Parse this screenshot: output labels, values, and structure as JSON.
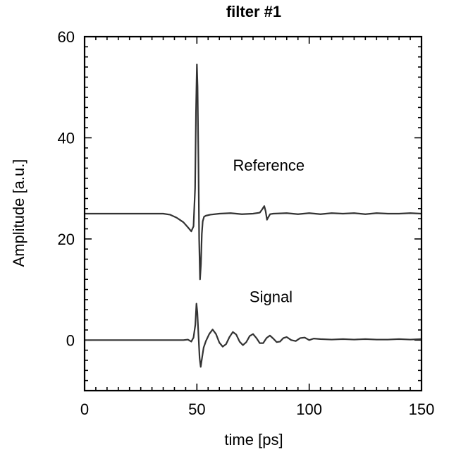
{
  "chart_data": {
    "type": "line",
    "title": "filter #1",
    "xlabel": "time [ps]",
    "ylabel": "Amplitude [a.u.]",
    "xlim": [
      0,
      150
    ],
    "ylim": [
      -10,
      60
    ],
    "xticks": [
      0,
      50,
      100,
      150
    ],
    "yticks": [
      0,
      20,
      40,
      60
    ],
    "x_minor_step": 5,
    "y_minor_step": 2,
    "grid": false,
    "legend": "none",
    "line_color": "#333333",
    "annotations": [
      {
        "text": "Reference",
        "x": 82,
        "y": 33.5
      },
      {
        "text": "Signal",
        "x": 83,
        "y": 7.5
      }
    ],
    "series": [
      {
        "x": [
          0,
          35,
          38,
          41,
          44,
          46,
          47.5,
          48.5,
          49.2,
          49.6,
          50,
          50.3,
          50.7,
          51,
          51.4,
          51.8,
          52.2,
          52.6,
          53.2,
          54,
          56,
          60,
          65,
          70,
          75,
          78,
          79,
          80,
          80.6,
          81.2,
          81.8,
          82.6,
          84,
          90,
          95,
          100,
          105,
          110,
          115,
          120,
          125,
          130,
          135,
          140,
          145,
          150
        ],
        "y": [
          25,
          25,
          24.8,
          24.2,
          23.3,
          22.3,
          21.5,
          22.5,
          30,
          45,
          54.5,
          50,
          35,
          20,
          12,
          15,
          21,
          23.5,
          24.4,
          24.6,
          24.8,
          25,
          25.1,
          24.9,
          25,
          25.2,
          25.8,
          26.5,
          25.5,
          23.8,
          24.3,
          24.9,
          25,
          25.1,
          24.9,
          25.1,
          24.9,
          25.1,
          25,
          25.1,
          24.9,
          25.1,
          25,
          25,
          25.1,
          25
        ]
      },
      {
        "x": [
          0,
          44,
          46,
          47.5,
          48.5,
          49.3,
          49.8,
          50.2,
          50.7,
          51.2,
          51.7,
          52.3,
          53,
          54,
          55.5,
          57,
          58.5,
          60,
          61.5,
          63,
          64.5,
          66,
          67.5,
          69,
          70.5,
          72,
          73.5,
          75,
          76.5,
          78,
          79.5,
          81,
          82.5,
          84,
          85.5,
          87,
          88.5,
          90,
          92,
          94,
          96,
          98,
          100,
          102,
          105,
          110,
          115,
          120,
          125,
          130,
          135,
          140,
          145,
          150
        ],
        "y": [
          0,
          0,
          0.1,
          -0.3,
          0.5,
          3,
          7.2,
          5.5,
          1,
          -3.5,
          -5.3,
          -3.5,
          -1.5,
          -0.2,
          1.2,
          2.1,
          1.2,
          -0.5,
          -1.3,
          -0.8,
          0.6,
          1.6,
          1.1,
          -0.3,
          -1,
          -0.4,
          0.8,
          1.2,
          0.4,
          -0.6,
          -0.6,
          0.4,
          0.9,
          0.3,
          -0.4,
          -0.3,
          0.4,
          0.6,
          0,
          -0.2,
          0.4,
          0.5,
          0,
          0.3,
          0.2,
          0.1,
          0.2,
          0.1,
          0.2,
          0.1,
          0.1,
          0.2,
          0.1,
          0.2
        ]
      }
    ]
  }
}
